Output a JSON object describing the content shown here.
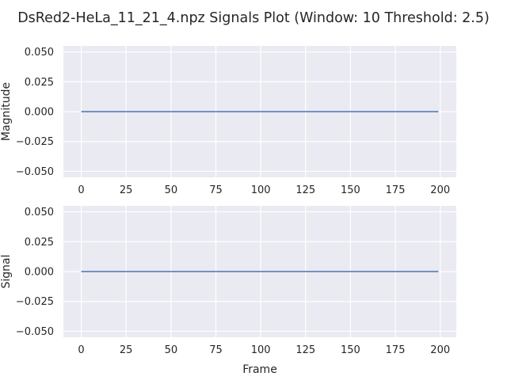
{
  "figure": {
    "title": "DsRed2-HeLa_11_21_4.npz Signals Plot (Window: 10 Threshold: 2.5)"
  },
  "colors": {
    "background": "#eaeaf2",
    "grid": "#ffffff",
    "line": "#4c72b0",
    "text": "#262626"
  },
  "chart_data": [
    {
      "type": "line",
      "title": "",
      "xlabel": "",
      "ylabel": "Magnitude",
      "xlim": [
        -9.95,
        208.95
      ],
      "ylim": [
        -0.055,
        0.055
      ],
      "xticks": [
        0,
        25,
        50,
        75,
        100,
        125,
        150,
        175,
        200
      ],
      "yticks": [
        0.05,
        0.025,
        0.0,
        -0.025,
        -0.05
      ],
      "ytick_labels": [
        "0.050",
        "0.025",
        "0.000",
        "−0.025",
        "−0.050"
      ],
      "grid": true,
      "series": [
        {
          "x": [
            0,
            199
          ],
          "y": [
            0,
            0
          ]
        }
      ]
    },
    {
      "type": "line",
      "title": "",
      "xlabel": "Frame",
      "ylabel": "Signal",
      "xlim": [
        -9.95,
        208.95
      ],
      "ylim": [
        -0.055,
        0.055
      ],
      "xticks": [
        0,
        25,
        50,
        75,
        100,
        125,
        150,
        175,
        200
      ],
      "yticks": [
        0.05,
        0.025,
        0.0,
        -0.025,
        -0.05
      ],
      "ytick_labels": [
        "0.050",
        "0.025",
        "0.000",
        "−0.025",
        "−0.050"
      ],
      "grid": true,
      "series": [
        {
          "x": [
            0,
            199
          ],
          "y": [
            0,
            0
          ]
        }
      ]
    }
  ]
}
